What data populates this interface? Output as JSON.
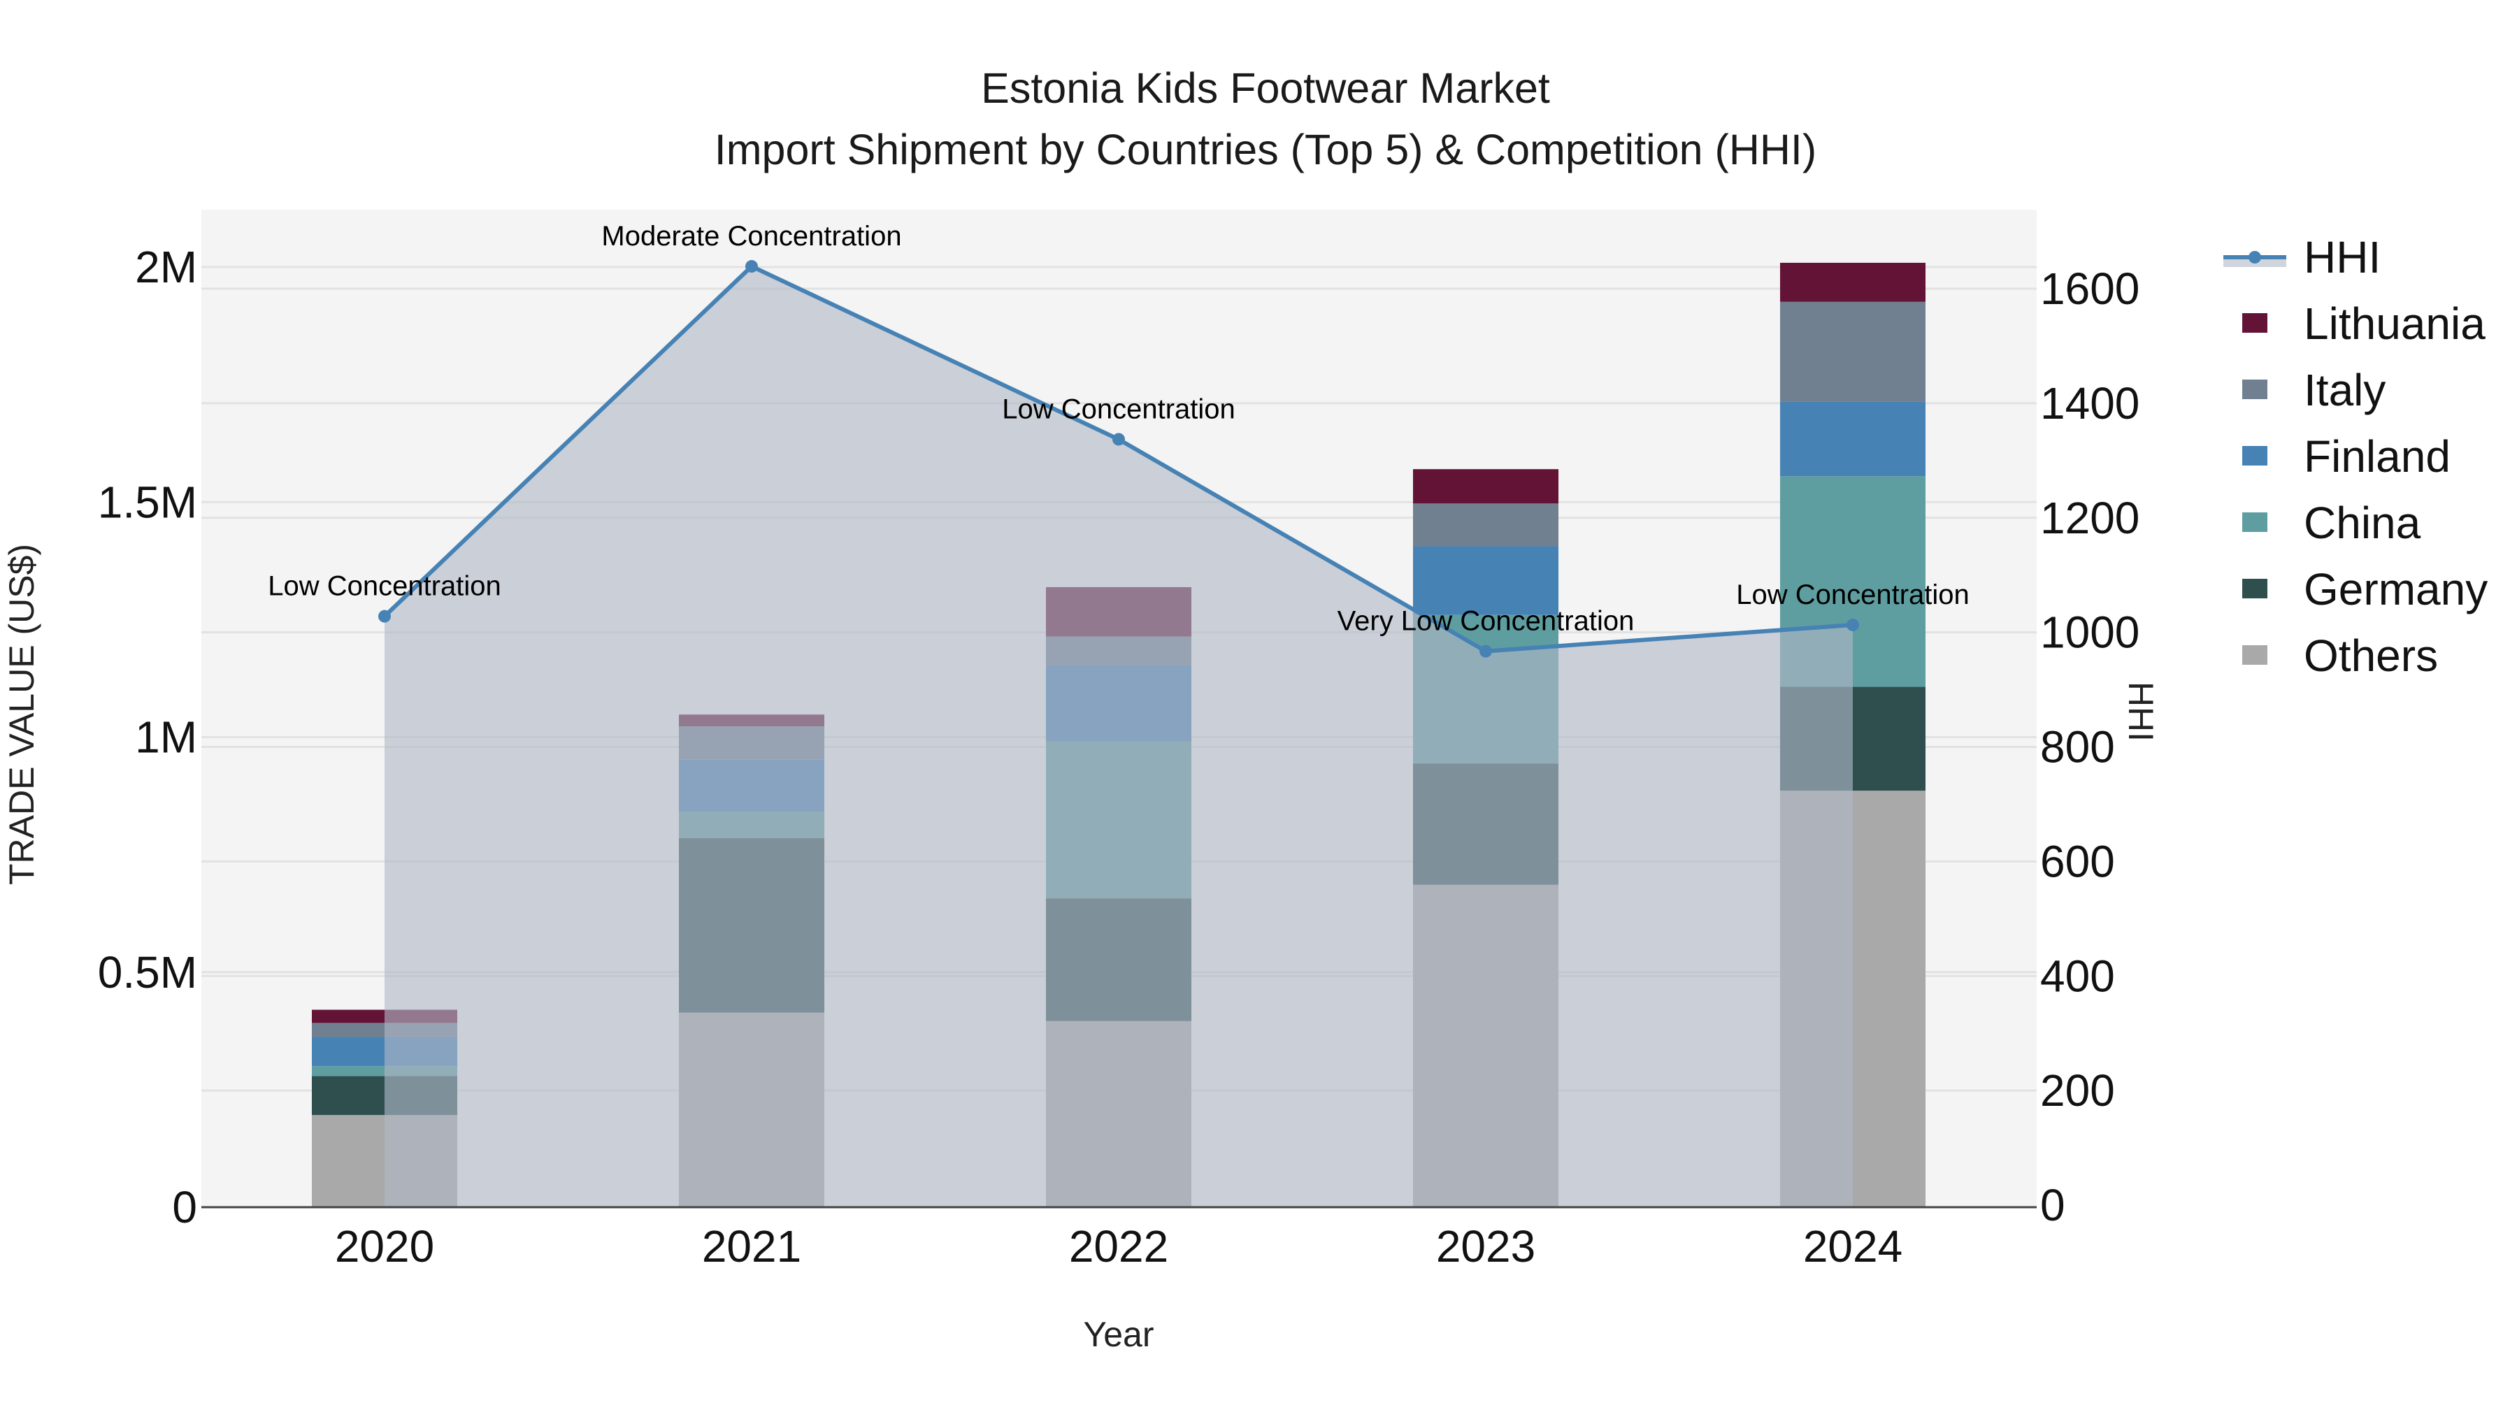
{
  "chart_data": {
    "type": "bar",
    "stacked": true,
    "title": "Estonia Kids Footwear Market",
    "subtitle": "Import Shipment by Countries (Top 5) & Competition (HHI)",
    "xlabel": "Year",
    "ylabel": "TRADE VALUE (US$)",
    "y2label": "HHI",
    "categories": [
      "2020",
      "2021",
      "2022",
      "2023",
      "2024"
    ],
    "ylim": [
      0,
      2100000
    ],
    "y_ticks": [
      {
        "value": 0,
        "label": "0"
      },
      {
        "value": 500000,
        "label": "0.5M"
      },
      {
        "value": 1000000,
        "label": "1M"
      },
      {
        "value": 1500000,
        "label": "1.5M"
      },
      {
        "value": 2000000,
        "label": "2M"
      }
    ],
    "y2lim": [
      0,
      1730
    ],
    "y2_ticks": [
      0,
      200,
      400,
      600,
      800,
      1000,
      1200,
      1400,
      1600
    ],
    "grid": true,
    "legend_position": "right",
    "series": [
      {
        "name": "Others",
        "color": "#A9A9A9",
        "values": [
          196000,
          414000,
          396000,
          686000,
          886000
        ]
      },
      {
        "name": "Germany",
        "color": "#2F4F4F",
        "values": [
          83000,
          371000,
          261000,
          258000,
          221000
        ]
      },
      {
        "name": "China",
        "color": "#5F9EA0",
        "values": [
          21000,
          56000,
          334000,
          316000,
          448000
        ]
      },
      {
        "name": "Finland",
        "color": "#4682B4",
        "values": [
          62000,
          111000,
          162000,
          146000,
          159000
        ]
      },
      {
        "name": "Italy",
        "color": "#708090",
        "values": [
          30000,
          71000,
          61000,
          91000,
          212000
        ]
      },
      {
        "name": "Lithuania",
        "color": "#631336",
        "values": [
          28000,
          25000,
          105000,
          73000,
          83000
        ]
      }
    ],
    "line_series": {
      "name": "HHI",
      "axis": "y2",
      "color": "#4682B4",
      "fill_color": "rgba(176,184,198,0.62)",
      "values": [
        1028,
        1639,
        1337,
        967,
        1013
      ],
      "annotations": [
        "Low Concentration",
        "Moderate Concentration",
        "Low Concentration",
        "Very Low Concentration",
        "Low Concentration"
      ]
    },
    "legend": [
      "HHI",
      "Lithuania",
      "Italy",
      "Finland",
      "China",
      "Germany",
      "Others"
    ]
  }
}
